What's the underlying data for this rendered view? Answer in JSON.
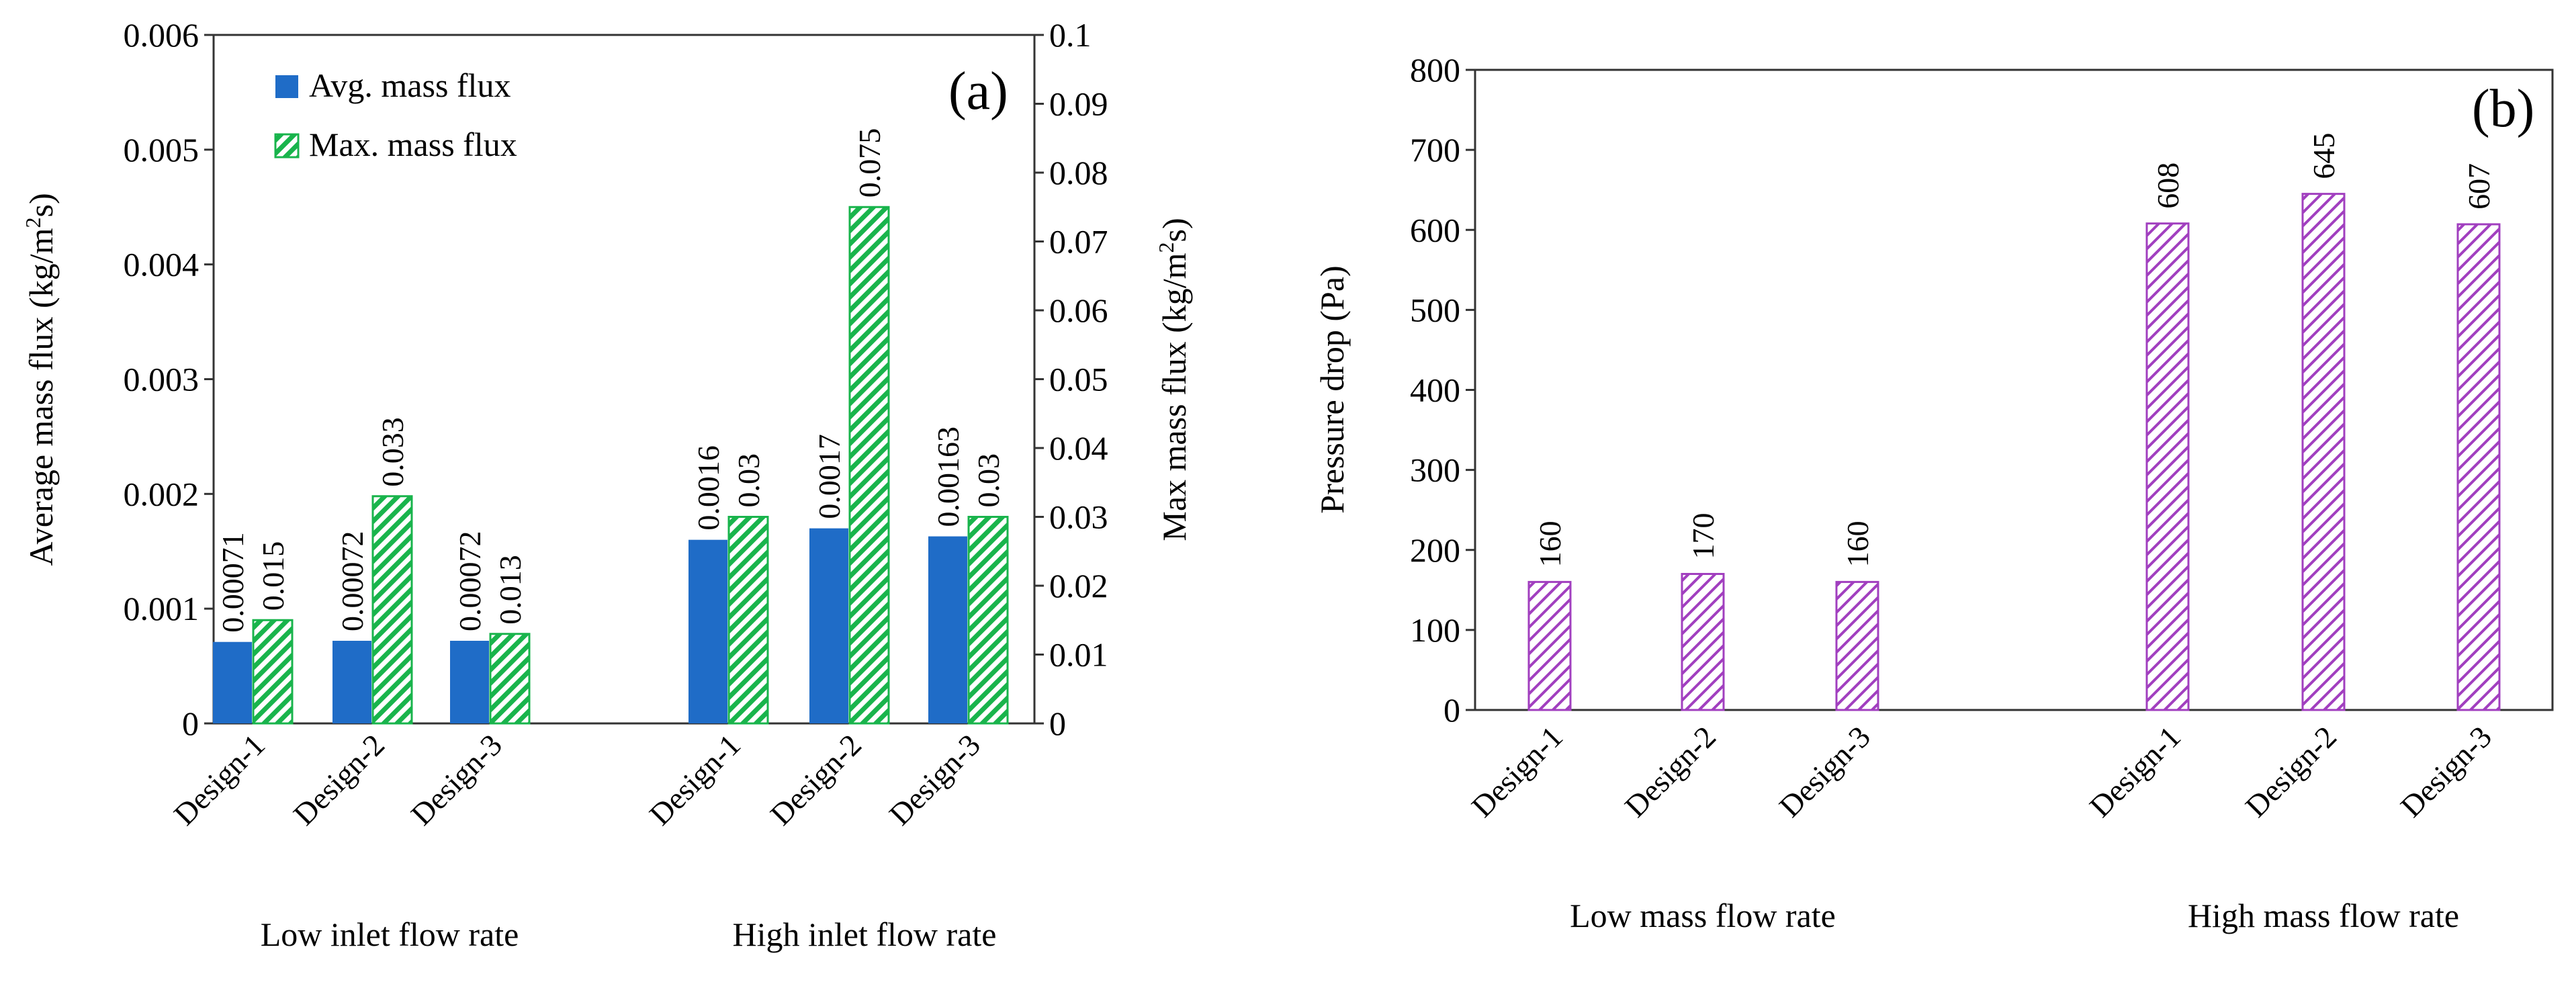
{
  "chart_data": [
    {
      "type": "bar",
      "panel_label": "(a)",
      "groups": [
        "Low inlet flow rate",
        "High inlet flow rate"
      ],
      "categories": [
        "Design-1",
        "Design-2",
        "Design-3"
      ],
      "series": [
        {
          "name": "Avg. mass flux",
          "axis": "left",
          "color": "#1f6cc7",
          "values": [
            [
              0.00071,
              0.00072,
              0.00072
            ],
            [
              0.0016,
              0.0017,
              0.00163
            ]
          ],
          "labels": [
            [
              "0.00071",
              "0.00072",
              "0.00072"
            ],
            [
              "0.0016",
              "0.0017",
              "0.00163"
            ]
          ]
        },
        {
          "name": "Max. mass flux",
          "axis": "right",
          "color": "#19b44c",
          "hatch": true,
          "values": [
            [
              0.015,
              0.033,
              0.013
            ],
            [
              0.03,
              0.075,
              0.03
            ]
          ],
          "labels": [
            [
              "0.015",
              "0.033",
              "0.013"
            ],
            [
              "0.03",
              "0.075",
              "0.03"
            ]
          ]
        }
      ],
      "ylabel_prefix": "Average mass flux (kg/m",
      "ylabel_suffix": "s)",
      "y2label_prefix": "Max mass flux (kg/m",
      "y2label_suffix": "s)",
      "unit_superscript": "2",
      "ylim": [
        0,
        0.006
      ],
      "y2lim": [
        0,
        0.1
      ],
      "yticks": [
        "0",
        "0.001",
        "0.002",
        "0.003",
        "0.004",
        "0.005",
        "0.006"
      ],
      "y2ticks": [
        "0",
        "0.01",
        "0.02",
        "0.03",
        "0.04",
        "0.05",
        "0.06",
        "0.07",
        "0.08",
        "0.09",
        "0.1"
      ],
      "legend_position": "top-left",
      "grid": false
    },
    {
      "type": "bar",
      "panel_label": "(b)",
      "groups": [
        "Low mass flow rate",
        "High mass flow rate"
      ],
      "categories": [
        "Design-1",
        "Design-2",
        "Design-3"
      ],
      "series": [
        {
          "axis": "left",
          "color": "#a13fbf",
          "hatch": true,
          "values": [
            [
              160,
              170,
              160
            ],
            [
              608,
              645,
              607
            ]
          ],
          "labels": [
            [
              "160",
              "170",
              "160"
            ],
            [
              "608",
              "645",
              "607"
            ]
          ]
        }
      ],
      "ylabel": "Pressure drop (Pa)",
      "ylim": [
        0,
        800
      ],
      "yticks": [
        "0",
        "100",
        "200",
        "300",
        "400",
        "500",
        "600",
        "700",
        "800"
      ],
      "grid": false
    }
  ]
}
